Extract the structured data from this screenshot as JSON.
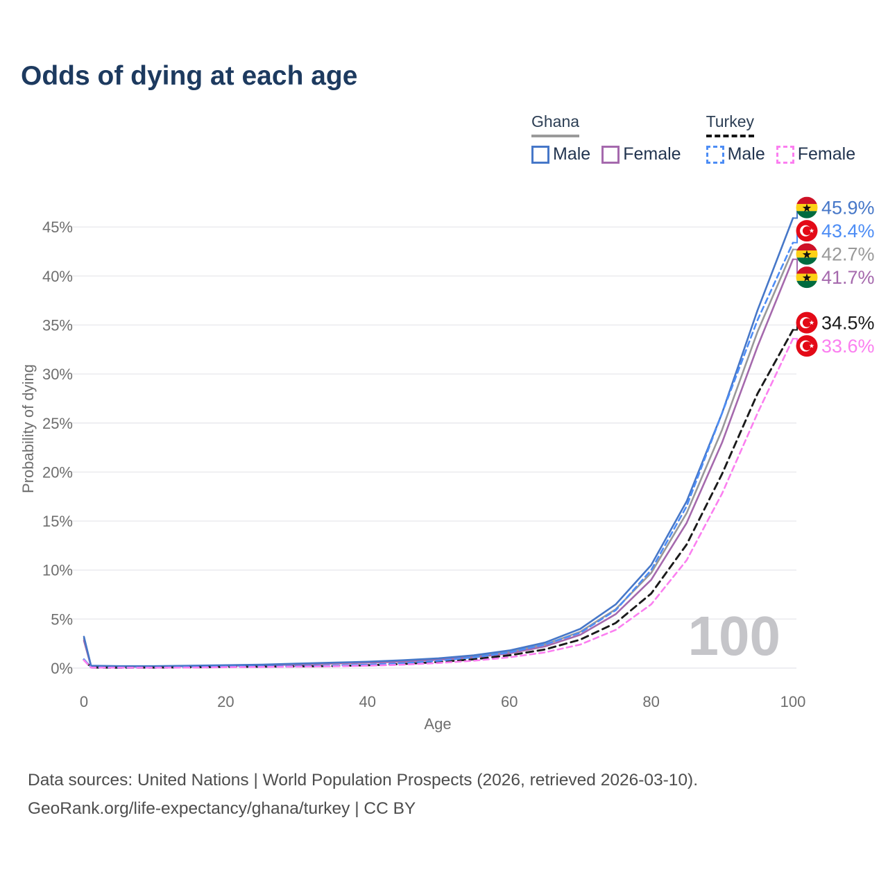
{
  "title": "Odds of dying at each age",
  "legend": {
    "groups": [
      {
        "name": "Ghana",
        "line_style": "solid",
        "underline_color": "#9a9a9a",
        "items": [
          {
            "label": "Male",
            "color": "#4677c8"
          },
          {
            "label": "Female",
            "color": "#a569ad"
          }
        ]
      },
      {
        "name": "Turkey",
        "line_style": "dashed",
        "underline_color": "#141414",
        "items": [
          {
            "label": "Male",
            "color": "#4d8df5"
          },
          {
            "label": "Female",
            "color": "#fb7ff0"
          }
        ]
      }
    ]
  },
  "watermark": "100",
  "source_lines": {
    "line1": "Data sources: United Nations | World Population Prospects (2026, retrieved 2026-03-10).",
    "line2": "GeoRank.org/life-expectancy/ghana/turkey | CC BY"
  },
  "colors": {
    "title_text": "#1d3a5f",
    "axis_text": "#6e6e6e",
    "gridline": "#e9e9ed",
    "watermark": "#c5c5c9",
    "ghana_male": "#4677c8",
    "ghana_female": "#a569ad",
    "ghana_total": "#999999",
    "turkey_male": "#4d8df5",
    "turkey_female": "#fb7ff0",
    "turkey_total": "#1a1a1a"
  },
  "chart_data": {
    "type": "line",
    "title": "Odds of dying at each age",
    "xlabel": "Age",
    "ylabel": "Probability of dying",
    "x_ticks": [
      0,
      20,
      40,
      60,
      80,
      100
    ],
    "y_ticks_percent": [
      0,
      5,
      10,
      15,
      20,
      25,
      30,
      35,
      40,
      45
    ],
    "xlim": [
      0,
      100
    ],
    "ylim_percent": [
      0,
      47
    ],
    "grid": "horizontal-only",
    "legend_position": "top-right",
    "ages": [
      0,
      1,
      5,
      10,
      15,
      20,
      25,
      30,
      35,
      40,
      45,
      50,
      55,
      60,
      65,
      70,
      75,
      80,
      85,
      90,
      95,
      100
    ],
    "series": [
      {
        "name": "Ghana Both sexes",
        "country": "Ghana",
        "flag": "ghana",
        "color": "#999999",
        "dashed": false,
        "values_percent": [
          3.0,
          0.23,
          0.18,
          0.18,
          0.22,
          0.27,
          0.32,
          0.4,
          0.5,
          0.6,
          0.72,
          0.92,
          1.2,
          1.65,
          2.4,
          3.7,
          6.0,
          9.7,
          15.8,
          24.3,
          34.3,
          42.7
        ],
        "end_label": "42.7%"
      },
      {
        "name": "Ghana Female",
        "country": "Ghana",
        "flag": "ghana",
        "color": "#a569ad",
        "dashed": false,
        "values_percent": [
          2.8,
          0.2,
          0.17,
          0.16,
          0.2,
          0.24,
          0.29,
          0.36,
          0.45,
          0.55,
          0.65,
          0.85,
          1.1,
          1.5,
          2.2,
          3.4,
          5.5,
          9.0,
          14.8,
          23.0,
          32.8,
          41.7
        ],
        "end_label": "41.7%"
      },
      {
        "name": "Ghana Male",
        "country": "Ghana",
        "flag": "ghana",
        "color": "#4677c8",
        "dashed": false,
        "values_percent": [
          3.2,
          0.25,
          0.2,
          0.2,
          0.25,
          0.3,
          0.35,
          0.45,
          0.55,
          0.65,
          0.8,
          1.0,
          1.3,
          1.8,
          2.6,
          4.0,
          6.5,
          10.5,
          17.0,
          26.0,
          36.5,
          45.9
        ],
        "end_label": "45.9%"
      },
      {
        "name": "Turkey Both sexes",
        "country": "Turkey",
        "flag": "turkey",
        "color": "#1a1a1a",
        "dashed": true,
        "values_percent": [
          0.85,
          0.06,
          0.04,
          0.05,
          0.08,
          0.12,
          0.14,
          0.17,
          0.21,
          0.29,
          0.42,
          0.62,
          0.9,
          1.3,
          1.9,
          2.9,
          4.6,
          7.6,
          12.6,
          19.8,
          28.0,
          34.5
        ],
        "end_label": "34.5%"
      },
      {
        "name": "Turkey Male",
        "country": "Turkey",
        "flag": "turkey",
        "color": "#4d8df5",
        "dashed": true,
        "values_percent": [
          0.9,
          0.07,
          0.05,
          0.06,
          0.1,
          0.15,
          0.17,
          0.2,
          0.25,
          0.35,
          0.5,
          0.75,
          1.1,
          1.6,
          2.4,
          3.6,
          5.9,
          10.0,
          16.5,
          26.0,
          35.5,
          43.4
        ],
        "end_label": "43.4%"
      },
      {
        "name": "Turkey Female",
        "country": "Turkey",
        "flag": "turkey",
        "color": "#fb7ff0",
        "dashed": true,
        "values_percent": [
          0.8,
          0.05,
          0.04,
          0.04,
          0.06,
          0.09,
          0.11,
          0.14,
          0.18,
          0.24,
          0.35,
          0.52,
          0.75,
          1.1,
          1.6,
          2.4,
          3.9,
          6.5,
          11.0,
          17.8,
          26.0,
          33.6
        ],
        "end_label": "33.6%"
      }
    ]
  }
}
